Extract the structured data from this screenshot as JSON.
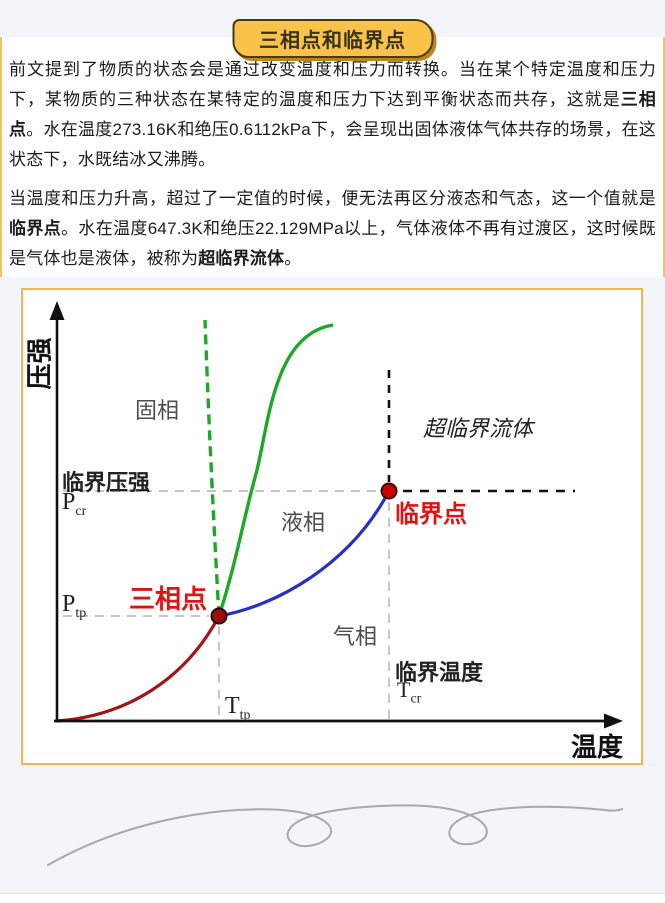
{
  "badge": {
    "label": "三相点和临界点"
  },
  "article": {
    "p1": [
      {
        "t": "前文提到了物质的状态会是通过改变温度和压力而转换。当在某个特定温度和压力下，某物质的三种状态在某特定的温度和压力下达到平衡状态而共存，这就是",
        "b": false
      },
      {
        "t": "三相点",
        "b": true
      },
      {
        "t": "。水在温度273.16K和绝压0.6112kPa下，会呈现出固体液体气体共存的场景，在这状态下，水既结冰又沸腾。",
        "b": false
      }
    ],
    "p2": [
      {
        "t": "当温度和压力升高，超过了一定值的时候，便无法再区分液态和气态，这一个值就是",
        "b": false
      },
      {
        "t": "临界点",
        "b": true
      },
      {
        "t": "。水在温度647.3K和绝压22.129MPa以上，气体液体不再有过渡区，这时候既是气体也是液体，被称为",
        "b": false
      },
      {
        "t": "超临界流体",
        "b": true
      },
      {
        "t": "。",
        "b": false
      }
    ]
  },
  "diagram": {
    "y_axis_label": "压强",
    "x_axis_label": "温度",
    "regions": {
      "solid": "固相",
      "liquid": "液相",
      "gas": "气相",
      "supercritical": "超临界流体"
    },
    "points": {
      "triple": "三相点",
      "critical": "临界点"
    },
    "annotations": {
      "critical_pressure": "临界压强",
      "critical_temperature": "临界温度",
      "p_cr_main": "P",
      "p_cr_sub": "cr",
      "p_tp_main": "P",
      "p_tp_sub": "tp",
      "t_tp_main": "T",
      "t_tp_sub": "tp",
      "t_cr_main": "T",
      "t_cr_sub": "cr"
    },
    "colors": {
      "sublimation_curve": "#a31414",
      "vaporization_curve": "#2430c8",
      "fusion_curve_solid": "#1fa827",
      "fusion_curve_dashed": "#1fa827",
      "triple_point_fill": "#9c0f0f",
      "critical_point_fill": "#cc0000",
      "red_label": "#e01212",
      "frame_border": "#f2b64e",
      "axis": "#111111",
      "guide_dash_gray": "#c6c6c6",
      "guide_dash_black": "#111111"
    }
  }
}
